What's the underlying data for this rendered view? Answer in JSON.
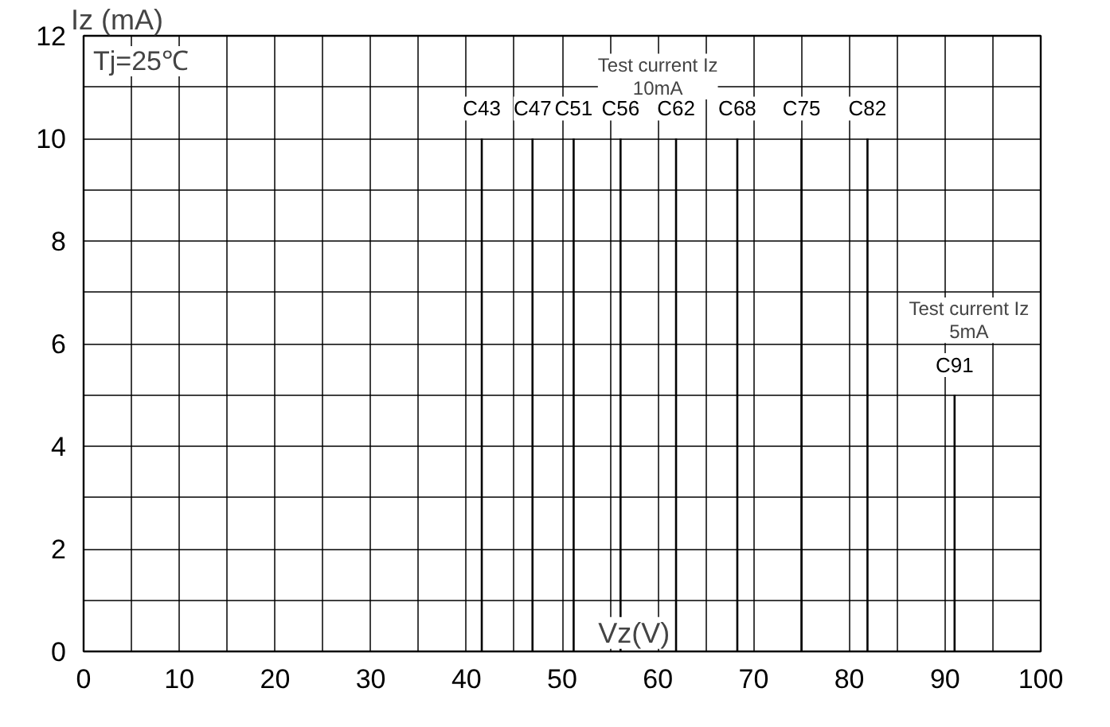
{
  "chart_data": {
    "type": "line",
    "xlabel": "Vz(V)",
    "ylabel": "Iz (mA)",
    "annotations": [
      "Tj=25℃",
      "Test current Iz\n10mA",
      "Test current Iz\n5mA"
    ],
    "series": [
      {
        "name": "C43",
        "color": "#000000",
        "x": [
          41.6,
          41.6
        ],
        "values": [
          0,
          10
        ]
      },
      {
        "name": "C47",
        "color": "#000000",
        "x": [
          46.9,
          46.9
        ],
        "values": [
          0,
          10
        ]
      },
      {
        "name": "C51",
        "color": "#000000",
        "x": [
          51.2,
          51.2
        ],
        "values": [
          0,
          10
        ]
      },
      {
        "name": "C56",
        "color": "#000000",
        "x": [
          56.1,
          56.1
        ],
        "values": [
          0,
          10
        ]
      },
      {
        "name": "C62",
        "color": "#000000",
        "x": [
          61.9,
          61.9
        ],
        "values": [
          0,
          10
        ]
      },
      {
        "name": "C68",
        "color": "#000000",
        "x": [
          68.3,
          68.3
        ],
        "values": [
          0,
          10
        ]
      },
      {
        "name": "C75",
        "color": "#000000",
        "x": [
          75,
          75
        ],
        "values": [
          0,
          10
        ]
      },
      {
        "name": "C82",
        "color": "#000000",
        "x": [
          81.9,
          81.9
        ],
        "values": [
          0,
          10
        ]
      },
      {
        "name": "C91",
        "color": "#000000",
        "x": [
          91,
          91
        ],
        "values": [
          0,
          5
        ]
      }
    ],
    "xlim": [
      0,
      100
    ],
    "ylim": [
      0,
      12
    ],
    "xticks": [
      0,
      {
        "value": 5,
        "label": null
      },
      10,
      {
        "value": 15,
        "label": null
      },
      20,
      {
        "value": 25,
        "label": null
      },
      30,
      {
        "value": 35,
        "label": null
      },
      40,
      {
        "value": 45,
        "label": null
      },
      50,
      {
        "value": 55,
        "label": null
      },
      60,
      {
        "value": 65,
        "label": null
      },
      70,
      {
        "value": 75,
        "label": null
      },
      80,
      {
        "value": 85,
        "label": null
      },
      90,
      {
        "value": 95,
        "label": null
      },
      100
    ],
    "yticks": [
      0,
      {
        "value": 1,
        "label": null
      },
      2,
      {
        "value": 3,
        "label": null
      },
      4,
      {
        "value": 5,
        "label": null
      },
      6,
      {
        "value": 7,
        "label": null
      },
      8,
      {
        "value": 9,
        "label": null
      },
      10,
      {
        "value": 11,
        "label": null
      },
      12
    ],
    "grid": true,
    "marker": "none",
    "line_style": "solid"
  }
}
